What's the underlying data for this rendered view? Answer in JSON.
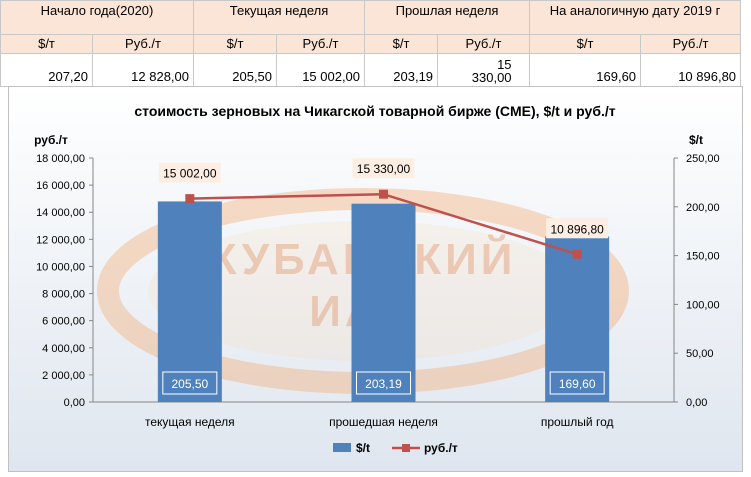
{
  "table": {
    "groups": [
      "Начало года(2020)",
      "Текущая неделя",
      "Прошлая неделя",
      "На аналогичную дату 2019 г"
    ],
    "units": [
      "$/т",
      "Руб./т",
      "$/т",
      "Руб./т",
      "$/т",
      "Руб./т",
      "$/т",
      "Руб./т"
    ],
    "values": [
      "207,20",
      "12 828,00",
      "205,50",
      "15 002,00",
      "203,19",
      "15 330,00",
      "169,60",
      "10 896,80"
    ]
  },
  "chart_data": {
    "type": "bar",
    "title": "стоимость зерновых на Чикагской товарной бирже (CME), $/t и руб./т",
    "categories": [
      "текущая неделя",
      "прошедшая неделя",
      "прошлый год"
    ],
    "series": [
      {
        "name": "$/t",
        "type": "bar",
        "axis": "right",
        "values": [
          205.5,
          203.19,
          169.6
        ],
        "labels": [
          "205,50",
          "203,19",
          "169,60"
        ],
        "color": "#4f81bd"
      },
      {
        "name": "руб./т",
        "type": "line",
        "axis": "left",
        "values": [
          15002.0,
          15330.0,
          10896.8
        ],
        "labels": [
          "15 002,00",
          "15 330,00",
          "10 896,80"
        ],
        "color": "#c0504d"
      }
    ],
    "left_axis": {
      "label": "руб./т",
      "min": 0,
      "max": 18000,
      "ticks": [
        "0,00",
        "2 000,00",
        "4 000,00",
        "6 000,00",
        "8 000,00",
        "10 000,00",
        "12 000,00",
        "14 000,00",
        "16 000,00",
        "18 000,00"
      ]
    },
    "right_axis": {
      "label": "$/t",
      "min": 0,
      "max": 250,
      "ticks": [
        "0,00",
        "50,00",
        "100,00",
        "150,00",
        "200,00",
        "250,00"
      ]
    },
    "grid": false,
    "legend_position": "bottom",
    "watermark": "КУБАНСКИЙ ИАЦ"
  }
}
